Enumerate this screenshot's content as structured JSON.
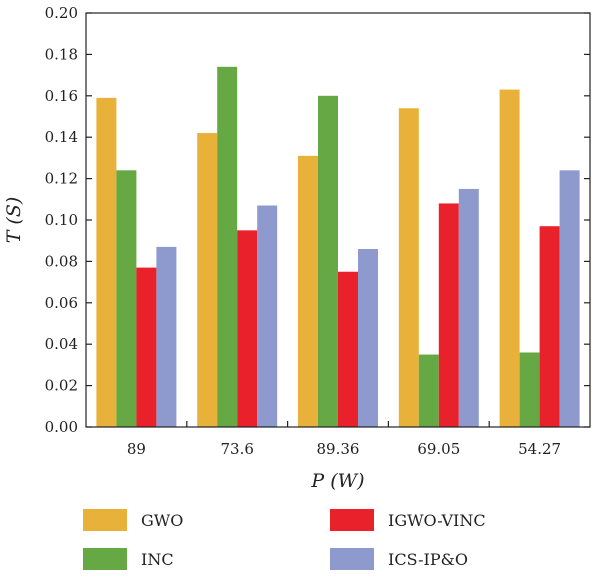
{
  "chart_data": {
    "type": "bar",
    "xlabel": "P (W)",
    "ylabel": "T (S)",
    "categories": [
      "89",
      "73.6",
      "89.36",
      "69.05",
      "54.27"
    ],
    "yticks": [
      "0.00",
      "0.02",
      "0.04",
      "0.06",
      "0.08",
      "0.10",
      "0.12",
      "0.14",
      "0.16",
      "0.18",
      "0.20"
    ],
    "ylim": [
      0,
      0.2
    ],
    "grid": false,
    "legend_position": "bottom",
    "series": [
      {
        "name": "GWO",
        "color": "#E8B23A",
        "values": [
          0.159,
          0.142,
          0.131,
          0.154,
          0.163
        ]
      },
      {
        "name": "INC",
        "color": "#66A844",
        "values": [
          0.124,
          0.174,
          0.16,
          0.035,
          0.036
        ]
      },
      {
        "name": "IGWO-VINC",
        "color": "#E8212B",
        "values": [
          0.077,
          0.095,
          0.075,
          0.108,
          0.097
        ]
      },
      {
        "name": "ICS-IP&O",
        "color": "#8E9ACD",
        "values": [
          0.087,
          0.107,
          0.086,
          0.115,
          0.124
        ]
      }
    ]
  }
}
